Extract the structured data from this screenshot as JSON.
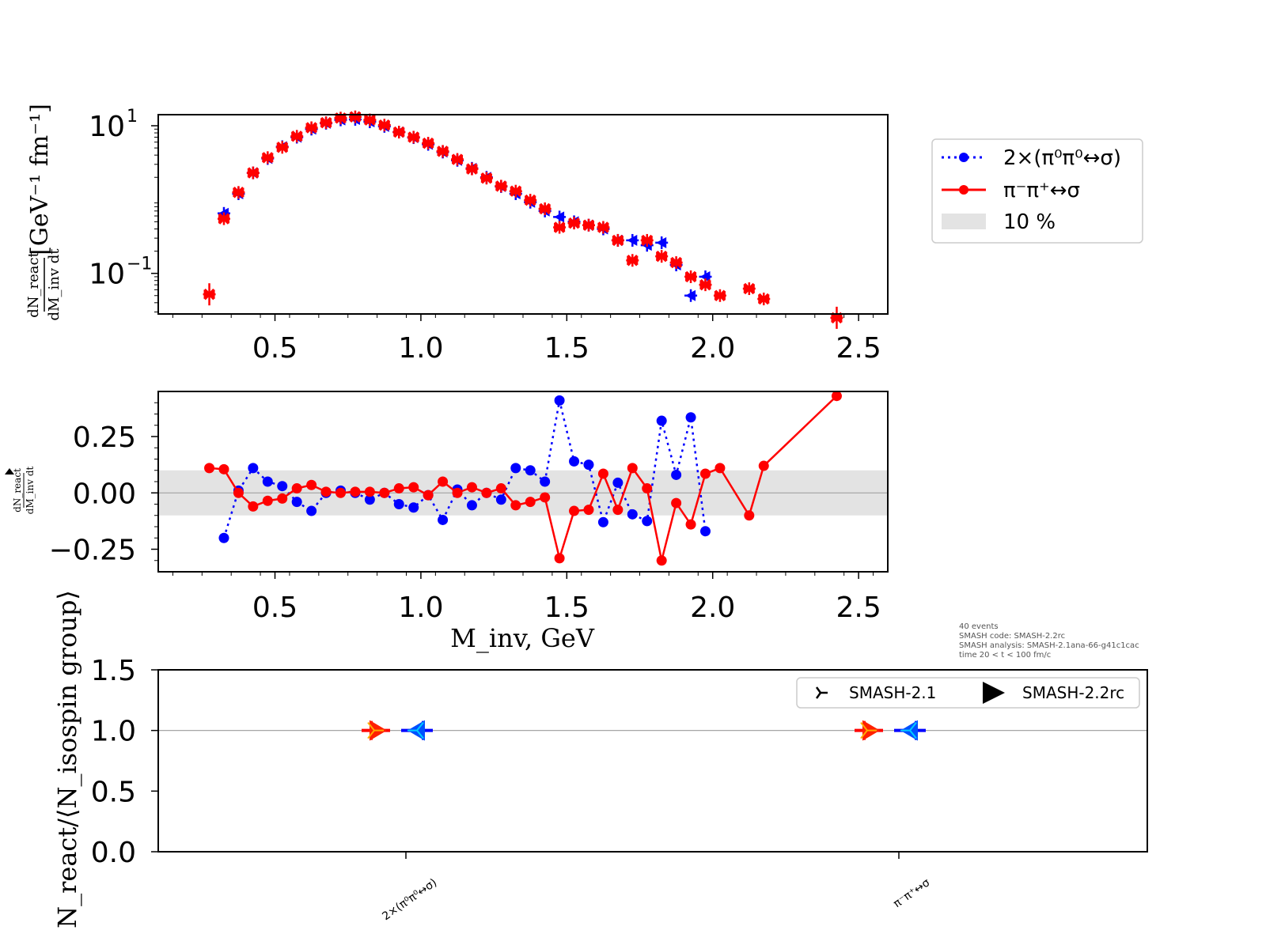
{
  "chart_data": [
    {
      "type": "scatter",
      "panel": "top",
      "yscale": "log",
      "ylabel_fraction": {
        "numerator": "dN_react",
        "denominator": "dM_inv dt"
      },
      "ylabel_unit": "[GeV⁻¹ fm⁻¹]",
      "xlim": [
        0.1,
        2.6
      ],
      "ylim_log10": [
        -1.55,
        1.15
      ],
      "xticks": [
        "0.5",
        "1.0",
        "1.5",
        "2.0",
        "2.5"
      ],
      "yticks": [
        {
          "log10": 1,
          "mant": "10",
          "exp": "1"
        },
        {
          "log10": -1,
          "mant": "10",
          "exp": "−1"
        }
      ],
      "legend_position": "right, outside",
      "series": [
        {
          "name": "2×(π⁰π⁰↔σ)",
          "color": "#0000ff",
          "marker": "left-triangle",
          "x": [
            0.325,
            0.375,
            0.425,
            0.475,
            0.525,
            0.575,
            0.625,
            0.675,
            0.725,
            0.775,
            0.825,
            0.875,
            0.925,
            0.975,
            1.025,
            1.075,
            1.125,
            1.175,
            1.225,
            1.275,
            1.325,
            1.375,
            1.425,
            1.475,
            1.525,
            1.575,
            1.625,
            1.675,
            1.725,
            1.775,
            1.825,
            1.875,
            1.925,
            1.975
          ],
          "y": [
            0.65,
            1.2,
            2.3,
            3.6,
            5.2,
            7.0,
            9.0,
            10.8,
            12.0,
            12.2,
            11.3,
            9.8,
            8.2,
            6.9,
            5.6,
            4.4,
            3.4,
            2.65,
            2.0,
            1.5,
            1.2,
            0.92,
            0.7,
            0.58,
            0.5,
            0.45,
            0.4,
            0.28,
            0.28,
            0.24,
            0.26,
            0.13,
            0.05,
            0.09
          ]
        },
        {
          "name": "π⁻π⁺↔σ",
          "color": "#ff0000",
          "marker": "x",
          "x": [
            0.275,
            0.325,
            0.375,
            0.425,
            0.475,
            0.525,
            0.575,
            0.625,
            0.675,
            0.725,
            0.775,
            0.825,
            0.875,
            0.925,
            0.975,
            1.025,
            1.075,
            1.125,
            1.175,
            1.225,
            1.275,
            1.325,
            1.375,
            1.425,
            1.475,
            1.525,
            1.575,
            1.625,
            1.675,
            1.725,
            1.775,
            1.825,
            1.875,
            1.925,
            1.975,
            2.025,
            2.125,
            2.175,
            2.425
          ],
          "y": [
            0.052,
            0.55,
            1.25,
            2.3,
            3.7,
            5.1,
            7.2,
            9.4,
            11.0,
            12.7,
            13.2,
            12.0,
            10.2,
            8.2,
            7.0,
            5.8,
            4.5,
            3.5,
            2.6,
            1.95,
            1.52,
            1.3,
            0.98,
            0.75,
            0.42,
            0.48,
            0.45,
            0.42,
            0.28,
            0.15,
            0.28,
            0.17,
            0.14,
            0.09,
            0.07,
            0.05,
            0.062,
            0.045,
            0.025
          ]
        }
      ]
    },
    {
      "type": "line",
      "panel": "middle",
      "ylabel_fraction": {
        "numerator": "dN_react",
        "denominator": "dM_inv dt"
      },
      "xlabel": "M_inv, GeV",
      "xlim": [
        0.1,
        2.6
      ],
      "ylim": [
        -0.35,
        0.45
      ],
      "xticks": [
        "0.5",
        "1.0",
        "1.5",
        "2.0",
        "2.5"
      ],
      "yticks": [
        {
          "value": 0.25,
          "label": "0.25"
        },
        {
          "value": 0.0,
          "label": "0.00"
        },
        {
          "value": -0.25,
          "label": "−0.25"
        }
      ],
      "band": {
        "label": "10 %",
        "ymin": -0.1,
        "ymax": 0.1,
        "color": "#e3e3e3"
      },
      "series": [
        {
          "name": "2×(π⁰π⁰↔σ)",
          "color": "#0000ff",
          "style": "dotted",
          "x": [
            0.325,
            0.375,
            0.425,
            0.475,
            0.525,
            0.575,
            0.625,
            0.675,
            0.725,
            0.775,
            0.825,
            0.875,
            0.925,
            0.975,
            1.025,
            1.075,
            1.125,
            1.175,
            1.225,
            1.275,
            1.325,
            1.375,
            1.425,
            1.475,
            1.525,
            1.575,
            1.625,
            1.675,
            1.725,
            1.775,
            1.825,
            1.875,
            1.925,
            1.975
          ],
          "y": [
            -0.2,
            0.01,
            0.11,
            0.05,
            0.03,
            -0.04,
            -0.08,
            0.0,
            0.01,
            0.0,
            -0.03,
            0.0,
            -0.05,
            -0.065,
            -0.01,
            -0.12,
            0.015,
            -0.055,
            0.0,
            -0.03,
            0.11,
            0.1,
            0.05,
            0.41,
            0.14,
            0.125,
            -0.13,
            0.045,
            -0.095,
            -0.125,
            0.32,
            0.08,
            0.335,
            -0.17
          ]
        },
        {
          "name": "π⁻π⁺↔σ",
          "color": "#ff0000",
          "style": "solid",
          "x": [
            0.275,
            0.325,
            0.375,
            0.425,
            0.475,
            0.525,
            0.575,
            0.625,
            0.675,
            0.725,
            0.775,
            0.825,
            0.875,
            0.925,
            0.975,
            1.025,
            1.075,
            1.125,
            1.175,
            1.225,
            1.275,
            1.325,
            1.375,
            1.425,
            1.475,
            1.525,
            1.575,
            1.625,
            1.675,
            1.725,
            1.775,
            1.825,
            1.875,
            1.925,
            1.975,
            2.025,
            2.125,
            2.175,
            2.425
          ],
          "y": [
            0.11,
            0.105,
            0.0,
            -0.06,
            -0.035,
            -0.025,
            0.02,
            0.035,
            0.005,
            0.0,
            0.005,
            0.005,
            0.0,
            0.02,
            0.025,
            -0.01,
            0.05,
            0.0,
            0.025,
            0.0,
            0.02,
            -0.055,
            -0.04,
            -0.02,
            -0.29,
            -0.08,
            -0.075,
            0.085,
            -0.075,
            0.11,
            0.02,
            -0.3,
            -0.045,
            -0.14,
            0.085,
            0.11,
            -0.1,
            0.12,
            0.43
          ]
        }
      ]
    },
    {
      "type": "scatter",
      "panel": "bottom",
      "ylabel": "N_react/⟨N_isospin group⟩",
      "ylim": [
        0.0,
        1.5
      ],
      "yticks": [
        "0.0",
        "0.5",
        "1.0",
        "1.5"
      ],
      "categories": [
        "2×(π⁰π⁰↔σ)",
        "π⁻π⁺↔σ"
      ],
      "reference_line": 1.0,
      "legend_position": "upper right",
      "series": [
        {
          "name": "SMASH-2.1",
          "marker": "tri-right",
          "values": [
            1.0,
            1.0
          ]
        },
        {
          "name": "SMASH-2.2rc",
          "marker": "filled-triangle-right",
          "values": [
            1.0,
            1.0
          ]
        }
      ]
    }
  ],
  "legend": {
    "items": [
      {
        "label": "2×(π⁰π⁰↔σ)",
        "color": "#0000ff"
      },
      {
        "label": "π⁻π⁺↔σ",
        "color": "#ff0000"
      },
      {
        "label": "10 %",
        "color": "#e3e3e3"
      }
    ]
  },
  "meta_text": [
    "40 events",
    "SMASH code:      SMASH-2.2rc",
    "SMASH analysis: SMASH-2.1ana-66-g41c1cac",
    "time 20 < t < 100 fm/c"
  ]
}
